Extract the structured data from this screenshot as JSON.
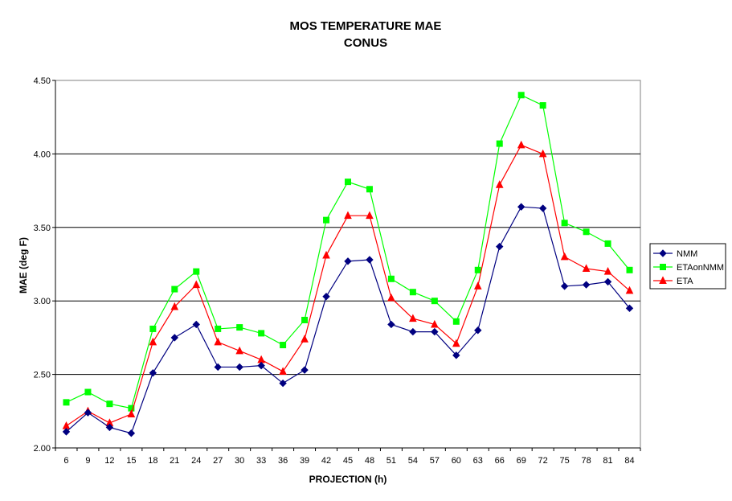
{
  "chart_data": {
    "type": "line",
    "title": "MOS TEMPERATURE MAE",
    "subtitle": "CONUS",
    "xlabel": "PROJECTION (h)",
    "ylabel": "MAE (deg F)",
    "ylim": [
      2.0,
      4.5
    ],
    "yticks": [
      "2.00",
      "2.50",
      "3.00",
      "3.50",
      "4.00",
      "4.50"
    ],
    "grid": "horizontal major lines",
    "legend_position": "right",
    "x": [
      "6",
      "9",
      "12",
      "15",
      "18",
      "21",
      "24",
      "27",
      "30",
      "33",
      "36",
      "39",
      "42",
      "45",
      "48",
      "51",
      "54",
      "57",
      "60",
      "63",
      "66",
      "69",
      "72",
      "75",
      "78",
      "81",
      "84"
    ],
    "series": [
      {
        "name": "NMM",
        "color": "#000080",
        "marker": "diamond",
        "values": [
          2.11,
          2.24,
          2.14,
          2.1,
          2.51,
          2.75,
          2.84,
          2.55,
          2.55,
          2.56,
          2.44,
          2.53,
          3.03,
          3.27,
          3.28,
          2.84,
          2.79,
          2.79,
          2.63,
          2.8,
          3.37,
          3.64,
          3.63,
          3.1,
          3.11,
          3.13,
          2.95
        ]
      },
      {
        "name": "ETAonNMM",
        "color": "#00ff00",
        "marker": "square",
        "values": [
          2.31,
          2.38,
          2.3,
          2.27,
          2.81,
          3.08,
          3.2,
          2.81,
          2.82,
          2.78,
          2.7,
          2.87,
          3.55,
          3.81,
          3.76,
          3.15,
          3.06,
          3.0,
          2.86,
          3.21,
          4.07,
          4.4,
          4.33,
          3.53,
          3.47,
          3.39,
          3.21
        ]
      },
      {
        "name": "ETA",
        "color": "#ff0000",
        "marker": "triangle",
        "values": [
          2.15,
          2.25,
          2.17,
          2.23,
          2.72,
          2.96,
          3.11,
          2.72,
          2.66,
          2.6,
          2.52,
          2.74,
          3.31,
          3.58,
          3.58,
          3.02,
          2.88,
          2.84,
          2.71,
          3.1,
          3.79,
          4.06,
          4.0,
          3.3,
          3.22,
          3.2,
          3.07
        ]
      }
    ]
  }
}
